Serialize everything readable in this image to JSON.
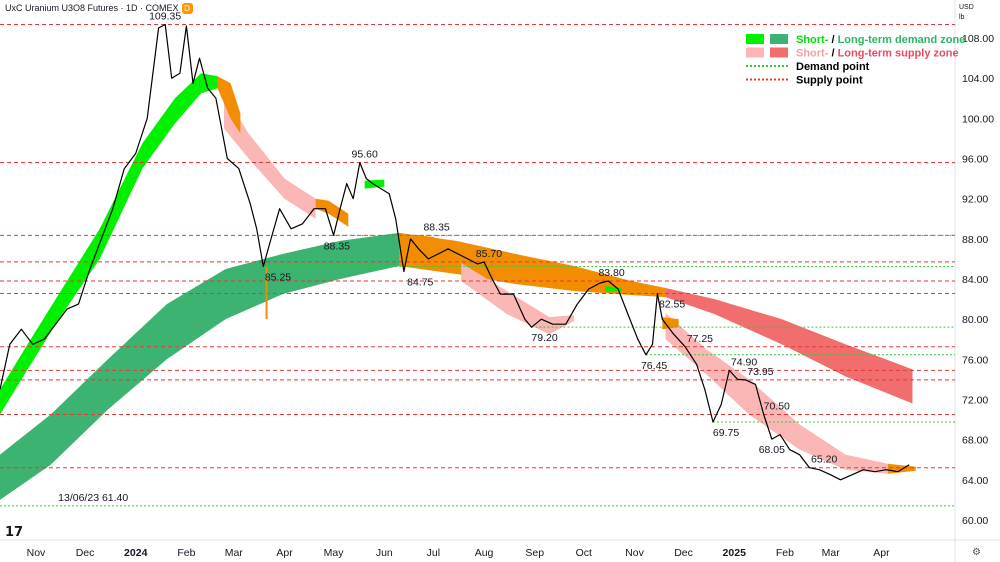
{
  "header": {
    "title": "UxC Uranium U3O8 Futures · 1D · COMEX",
    "badge": "D",
    "currency": "USD",
    "unit": "lb"
  },
  "legend": [
    {
      "prefix": "Short-",
      "sep": " / ",
      "main": "Long-term demand zone",
      "prefix_color": "#00e000",
      "main_color": "#2db562",
      "swatch_short": "#00f000",
      "swatch_long": "#3cb371",
      "style": "box"
    },
    {
      "prefix": "Short-",
      "sep": " / ",
      "main": "Long-term supply zone",
      "prefix_color": "#f4a0a0",
      "main_color": "#e84a5f",
      "swatch_short": "#fbb6b6",
      "swatch_long": "#f26d6d",
      "style": "box"
    },
    {
      "prefix": "",
      "sep": "",
      "main": "Demand point",
      "prefix_color": "#000000",
      "main_color": "#000000",
      "swatch_short": "#33cc33",
      "swatch_long": "#33cc33",
      "style": "dots"
    },
    {
      "prefix": "",
      "sep": "",
      "main": "Supply point",
      "prefix_color": "#000000",
      "main_color": "#000000",
      "swatch_short": "#e53935",
      "swatch_long": "#e53935",
      "style": "dots"
    }
  ],
  "colors": {
    "price_line": "#000000",
    "demand_short": "#00f000",
    "demand_long": "#3cb371",
    "supply_short": "#fbb6b6",
    "supply_long": "#f26d6d",
    "transition": "#f28c00",
    "demand_point": "#33cc33",
    "supply_point": "#e53935"
  },
  "icons": {
    "logo": "tradingview-logo",
    "settings": "gear-icon"
  },
  "logo_text": "17",
  "settings_glyph": "⚙",
  "chart_data": {
    "type": "line",
    "title": "UxC Uranium U3O8 Futures · 1D · COMEX",
    "ylim": [
      58,
      110
    ],
    "xlim": [
      "2023-10-10",
      "2025-05-16"
    ],
    "y_ticks": [
      "108.00",
      "104.00",
      "100.00",
      "96.00",
      "92.00",
      "88.00",
      "84.00",
      "80.00",
      "76.00",
      "72.00",
      "68.00",
      "64.00",
      "60.00"
    ],
    "x_ticks": [
      {
        "date": "2023-11-01",
        "label": "Nov",
        "bold": false
      },
      {
        "date": "2023-12-01",
        "label": "Dec",
        "bold": false
      },
      {
        "date": "2024-01-01",
        "label": "2024",
        "bold": true
      },
      {
        "date": "2024-02-01",
        "label": "Feb",
        "bold": false
      },
      {
        "date": "2024-03-01",
        "label": "Mar",
        "bold": false
      },
      {
        "date": "2024-04-01",
        "label": "Apr",
        "bold": false
      },
      {
        "date": "2024-05-01",
        "label": "May",
        "bold": false
      },
      {
        "date": "2024-06-01",
        "label": "Jun",
        "bold": false
      },
      {
        "date": "2024-07-01",
        "label": "Jul",
        "bold": false
      },
      {
        "date": "2024-08-01",
        "label": "Aug",
        "bold": false
      },
      {
        "date": "2024-09-01",
        "label": "Sep",
        "bold": false
      },
      {
        "date": "2024-10-01",
        "label": "Oct",
        "bold": false
      },
      {
        "date": "2024-11-01",
        "label": "Nov",
        "bold": false
      },
      {
        "date": "2024-12-01",
        "label": "Dec",
        "bold": false
      },
      {
        "date": "2025-01-01",
        "label": "2025",
        "bold": true
      },
      {
        "date": "2025-02-01",
        "label": "Feb",
        "bold": false
      },
      {
        "date": "2025-03-01",
        "label": "Mar",
        "bold": false
      },
      {
        "date": "2025-04-01",
        "label": "Apr",
        "bold": false
      }
    ],
    "price": [
      [
        "2023-10-10",
        73.0
      ],
      [
        "2023-10-16",
        77.5
      ],
      [
        "2023-10-23",
        79.0
      ],
      [
        "2023-10-30",
        77.5
      ],
      [
        "2023-11-06",
        78.0
      ],
      [
        "2023-11-13",
        79.5
      ],
      [
        "2023-11-20",
        81.0
      ],
      [
        "2023-11-27",
        81.5
      ],
      [
        "2023-12-04",
        85.0
      ],
      [
        "2023-12-11",
        88.0
      ],
      [
        "2023-12-18",
        91.0
      ],
      [
        "2023-12-25",
        95.0
      ],
      [
        "2024-01-01",
        96.5
      ],
      [
        "2024-01-08",
        100.0
      ],
      [
        "2024-01-15",
        109.0
      ],
      [
        "2024-01-19",
        109.35
      ],
      [
        "2024-01-23",
        104.0
      ],
      [
        "2024-01-28",
        104.5
      ],
      [
        "2024-02-01",
        109.2
      ],
      [
        "2024-02-05",
        103.5
      ],
      [
        "2024-02-09",
        106.0
      ],
      [
        "2024-02-14",
        103.0
      ],
      [
        "2024-02-19",
        102.0
      ],
      [
        "2024-02-26",
        96.0
      ],
      [
        "2024-03-04",
        95.0
      ],
      [
        "2024-03-11",
        91.5
      ],
      [
        "2024-03-15",
        89.0
      ],
      [
        "2024-03-19",
        85.25
      ],
      [
        "2024-03-22",
        87.0
      ],
      [
        "2024-03-29",
        91.0
      ],
      [
        "2024-04-05",
        89.0
      ],
      [
        "2024-04-12",
        89.5
      ],
      [
        "2024-04-19",
        91.0
      ],
      [
        "2024-04-26",
        91.0
      ],
      [
        "2024-05-01",
        88.35
      ],
      [
        "2024-05-05",
        91.0
      ],
      [
        "2024-05-09",
        93.5
      ],
      [
        "2024-05-13",
        92.0
      ],
      [
        "2024-05-17",
        95.6
      ],
      [
        "2024-05-21",
        94.0
      ],
      [
        "2024-05-25",
        93.5
      ],
      [
        "2024-05-30",
        93.0
      ],
      [
        "2024-06-04",
        92.5
      ],
      [
        "2024-06-08",
        90.0
      ],
      [
        "2024-06-13",
        84.75
      ],
      [
        "2024-06-17",
        88.0
      ],
      [
        "2024-06-22",
        87.0
      ],
      [
        "2024-06-28",
        86.0
      ],
      [
        "2024-07-04",
        86.5
      ],
      [
        "2024-07-10",
        87.0
      ],
      [
        "2024-07-16",
        86.5
      ],
      [
        "2024-07-22",
        86.0
      ],
      [
        "2024-07-28",
        85.5
      ],
      [
        "2024-08-01",
        85.7
      ],
      [
        "2024-08-06",
        84.0
      ],
      [
        "2024-08-11",
        82.5
      ],
      [
        "2024-08-19",
        82.5
      ],
      [
        "2024-08-26",
        80.0
      ],
      [
        "2024-08-30",
        79.2
      ],
      [
        "2024-09-05",
        80.0
      ],
      [
        "2024-09-12",
        79.5
      ],
      [
        "2024-09-20",
        79.5
      ],
      [
        "2024-09-27",
        81.5
      ],
      [
        "2024-10-04",
        83.0
      ],
      [
        "2024-10-11",
        83.6
      ],
      [
        "2024-10-16",
        83.8
      ],
      [
        "2024-10-22",
        83.0
      ],
      [
        "2024-10-28",
        80.5
      ],
      [
        "2024-11-03",
        78.0
      ],
      [
        "2024-11-08",
        76.45
      ],
      [
        "2024-11-12",
        77.5
      ],
      [
        "2024-11-15",
        82.55
      ],
      [
        "2024-11-18",
        80.0
      ],
      [
        "2024-11-25",
        78.5
      ],
      [
        "2024-12-02",
        77.25
      ],
      [
        "2024-12-09",
        75.5
      ],
      [
        "2024-12-14",
        73.0
      ],
      [
        "2024-12-19",
        69.75
      ],
      [
        "2024-12-24",
        71.5
      ],
      [
        "2024-12-29",
        74.9
      ],
      [
        "2025-01-03",
        74.0
      ],
      [
        "2025-01-08",
        73.95
      ],
      [
        "2025-01-14",
        73.5
      ],
      [
        "2025-01-19",
        70.5
      ],
      [
        "2025-01-24",
        68.05
      ],
      [
        "2025-01-29",
        68.5
      ],
      [
        "2025-02-04",
        67.0
      ],
      [
        "2025-02-10",
        66.5
      ],
      [
        "2025-02-16",
        65.2
      ],
      [
        "2025-02-22",
        65.0
      ],
      [
        "2025-03-01",
        64.5
      ],
      [
        "2025-03-07",
        64.0
      ],
      [
        "2025-03-14",
        64.5
      ],
      [
        "2025-03-21",
        65.0
      ],
      [
        "2025-03-28",
        64.8
      ],
      [
        "2025-04-04",
        65.0
      ],
      [
        "2025-04-11",
        64.8
      ],
      [
        "2025-04-18",
        65.5
      ]
    ],
    "zones": {
      "demand_long": [
        [
          "2023-10-10",
          62.0,
          66.5
        ],
        [
          "2023-11-10",
          65.5,
          70.5
        ],
        [
          "2023-12-15",
          71.0,
          76.0
        ],
        [
          "2024-01-20",
          76.0,
          81.5
        ],
        [
          "2024-02-25",
          80.0,
          85.0
        ],
        [
          "2024-03-31",
          82.5,
          86.5
        ],
        [
          "2024-05-05",
          84.0,
          87.8
        ],
        [
          "2024-06-10",
          85.3,
          88.6
        ]
      ],
      "transition_long": [
        [
          "2024-06-10",
          85.3,
          88.6
        ],
        [
          "2024-07-15",
          84.5,
          87.8
        ],
        [
          "2024-08-20",
          83.5,
          86.5
        ],
        [
          "2024-09-25",
          82.8,
          85.3
        ],
        [
          "2024-10-30",
          82.4,
          83.8
        ],
        [
          "2024-11-20",
          82.2,
          83.1
        ]
      ],
      "supply_long": [
        [
          "2024-11-20",
          82.2,
          83.1
        ],
        [
          "2024-12-20",
          80.5,
          82.0
        ],
        [
          "2025-01-30",
          77.5,
          80.0
        ],
        [
          "2025-03-10",
          74.3,
          77.5
        ],
        [
          "2025-04-20",
          71.6,
          75.0
        ]
      ],
      "demand_short": [
        [
          "2023-10-10",
          70.5,
          73.0
        ],
        [
          "2023-10-25",
          74.5,
          77.0
        ],
        [
          "2023-11-15",
          80.0,
          82.5
        ],
        [
          "2023-12-10",
          86.0,
          89.0
        ],
        [
          "2024-01-05",
          95.0,
          97.5
        ],
        [
          "2024-01-25",
          99.5,
          102.0
        ],
        [
          "2024-02-10",
          102.5,
          104.5
        ],
        [
          "2024-02-20",
          103.0,
          104.2
        ]
      ],
      "supply_short": [
        [
          "2024-02-24",
          99.0,
          102.5
        ],
        [
          "2024-03-10",
          96.0,
          98.5
        ],
        [
          "2024-04-01",
          92.0,
          94.0
        ],
        [
          "2024-04-20",
          90.0,
          92.0
        ]
      ],
      "supply_short_2": [
        [
          "2024-07-18",
          83.8,
          85.6
        ],
        [
          "2024-08-15",
          80.5,
          82.8
        ],
        [
          "2024-09-10",
          78.5,
          80.2
        ],
        [
          "2024-09-25",
          79.8,
          80.4
        ]
      ],
      "supply_short_3": [
        [
          "2024-11-20",
          78.0,
          80.6
        ],
        [
          "2024-12-15",
          74.5,
          77.0
        ],
        [
          "2025-01-10",
          70.5,
          74.0
        ],
        [
          "2025-02-10",
          67.0,
          69.5
        ],
        [
          "2025-03-10",
          65.0,
          66.5
        ],
        [
          "2025-04-05",
          64.6,
          65.6
        ]
      ],
      "transition_short": [
        [
          "2024-02-20",
          103.0,
          104.2
        ],
        [
          "2024-02-28",
          100.0,
          103.5
        ],
        [
          "2024-03-05",
          98.5,
          100.5
        ]
      ],
      "transition_short_2": [
        [
          "2024-04-20",
          91.0,
          92.0
        ],
        [
          "2024-04-28",
          90.5,
          91.8
        ],
        [
          "2024-05-10",
          89.2,
          90.5
        ]
      ],
      "transition_short_3": [
        [
          "2024-06-12",
          85.5,
          88.5
        ],
        [
          "2024-07-01",
          85.2,
          88.2
        ],
        [
          "2024-07-18",
          84.8,
          86.0
        ]
      ],
      "transition_short_4": [
        [
          "2024-11-18",
          79.0,
          80.2
        ],
        [
          "2024-11-28",
          79.2,
          80.0
        ]
      ],
      "transition_short_5": [
        [
          "2025-04-05",
          64.6,
          65.6
        ],
        [
          "2025-04-22",
          64.9,
          65.3
        ]
      ],
      "demand_short_2": [
        [
          "2024-05-20",
          93.0,
          93.8
        ],
        [
          "2024-06-01",
          93.2,
          93.9
        ]
      ],
      "demand_short_3": [
        [
          "2024-10-14",
          82.7,
          83.3
        ],
        [
          "2024-10-24",
          82.8,
          83.1
        ]
      ]
    },
    "vertical_marker": {
      "date": "2024-03-21",
      "y_from": 80.0,
      "y_to": 85.2
    },
    "supply_points": [
      109.35,
      95.6,
      88.35,
      85.7,
      83.8,
      82.55,
      77.25,
      74.9,
      73.95,
      70.5,
      65.2
    ],
    "demand_points": [
      {
        "value": 85.25,
        "from": "2024-03-19"
      },
      {
        "value": 88.35,
        "from": "2024-05-01"
      },
      {
        "value": 79.2,
        "from": "2024-08-30"
      },
      {
        "value": 76.45,
        "from": "2024-11-08"
      },
      {
        "value": 69.75,
        "from": "2024-12-19"
      },
      {
        "value": 61.4,
        "from": "2023-10-10"
      }
    ],
    "annotations": [
      {
        "text": "109.35",
        "date": "2024-01-19",
        "value": 109.35,
        "pos": "above"
      },
      {
        "text": "95.60",
        "date": "2024-05-20",
        "value": 95.6,
        "pos": "above"
      },
      {
        "text": "88.35",
        "date": "2024-07-03",
        "value": 88.35,
        "pos": "above"
      },
      {
        "text": "88.35",
        "date": "2024-05-03",
        "value": 88.35,
        "pos": "below"
      },
      {
        "text": "85.70",
        "date": "2024-08-04",
        "value": 85.7,
        "pos": "above"
      },
      {
        "text": "85.25",
        "date": "2024-03-28",
        "value": 85.25,
        "pos": "below"
      },
      {
        "text": "84.75",
        "date": "2024-06-23",
        "value": 84.75,
        "pos": "below"
      },
      {
        "text": "83.80",
        "date": "2024-10-18",
        "value": 83.8,
        "pos": "above"
      },
      {
        "text": "82.55",
        "date": "2024-11-24",
        "value": 82.55,
        "pos": "below"
      },
      {
        "text": "79.20",
        "date": "2024-09-07",
        "value": 79.2,
        "pos": "below"
      },
      {
        "text": "77.25",
        "date": "2024-12-11",
        "value": 77.25,
        "pos": "above"
      },
      {
        "text": "76.45",
        "date": "2024-11-13",
        "value": 76.45,
        "pos": "below"
      },
      {
        "text": "74.90",
        "date": "2025-01-07",
        "value": 74.9,
        "pos": "above"
      },
      {
        "text": "73.95",
        "date": "2025-01-17",
        "value": 73.95,
        "pos": "above"
      },
      {
        "text": "70.50",
        "date": "2025-01-27",
        "value": 70.5,
        "pos": "above"
      },
      {
        "text": "69.75",
        "date": "2024-12-27",
        "value": 69.75,
        "pos": "below"
      },
      {
        "text": "68.05",
        "date": "2025-01-24",
        "value": 68.05,
        "pos": "below"
      },
      {
        "text": "65.20",
        "date": "2025-02-25",
        "value": 65.2,
        "pos": "above"
      },
      {
        "text": "13/06/23 61.40",
        "date": "2023-12-06",
        "value": 61.4,
        "pos": "above"
      }
    ]
  }
}
